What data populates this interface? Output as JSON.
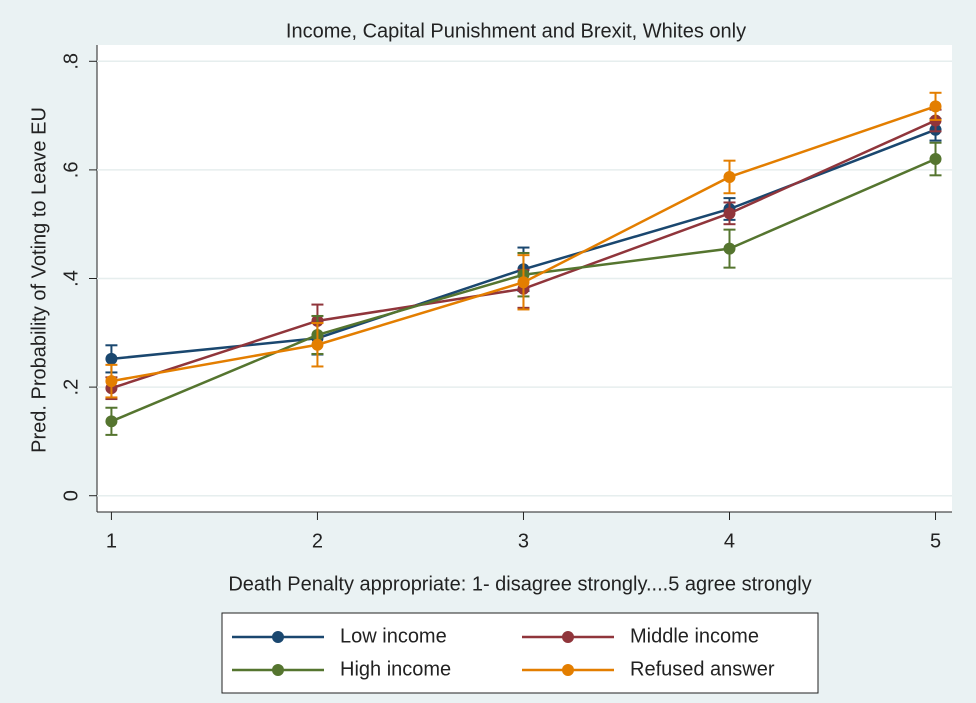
{
  "chart_data": {
    "type": "line",
    "title": "Income, Capital Punishment and Brexit, Whites only",
    "x_label": "Death Penalty appropriate: 1- disagree strongly....5 agree strongly",
    "y_label": "Pred. Probability of Voting to Leave EU",
    "x": [
      1,
      2,
      3,
      4,
      5
    ],
    "series": [
      {
        "name": "Low income",
        "color": "#1a476f",
        "values": [
          0.252,
          0.29,
          0.417,
          0.528,
          0.674
        ],
        "errors": [
          0.025,
          0.03,
          0.04,
          0.02,
          0.02
        ]
      },
      {
        "name": "Middle income",
        "color": "#90353b",
        "values": [
          0.198,
          0.322,
          0.381,
          0.52,
          0.691
        ],
        "errors": [
          0.02,
          0.03,
          0.035,
          0.02,
          0.02
        ]
      },
      {
        "name": "High income",
        "color": "#55752f",
        "values": [
          0.137,
          0.296,
          0.407,
          0.455,
          0.62
        ],
        "errors": [
          0.025,
          0.035,
          0.04,
          0.035,
          0.03
        ]
      },
      {
        "name": "Refused answer",
        "color": "#e37e00",
        "values": [
          0.211,
          0.278,
          0.393,
          0.587,
          0.717
        ],
        "errors": [
          0.03,
          0.04,
          0.05,
          0.03,
          0.025
        ]
      }
    ],
    "xlim": [
      0.93,
      5.08
    ],
    "xticks": [
      1,
      2,
      3,
      4,
      5
    ],
    "ylim": [
      -0.03,
      0.83
    ],
    "yticks": [
      0,
      {
        "value": 0.2,
        "label": ".2"
      },
      {
        "value": 0.4,
        "label": ".4"
      },
      {
        "value": 0.6,
        "label": ".6"
      },
      {
        "value": 0.8,
        "label": ".8"
      }
    ],
    "grid": true,
    "legend": "bottom"
  }
}
